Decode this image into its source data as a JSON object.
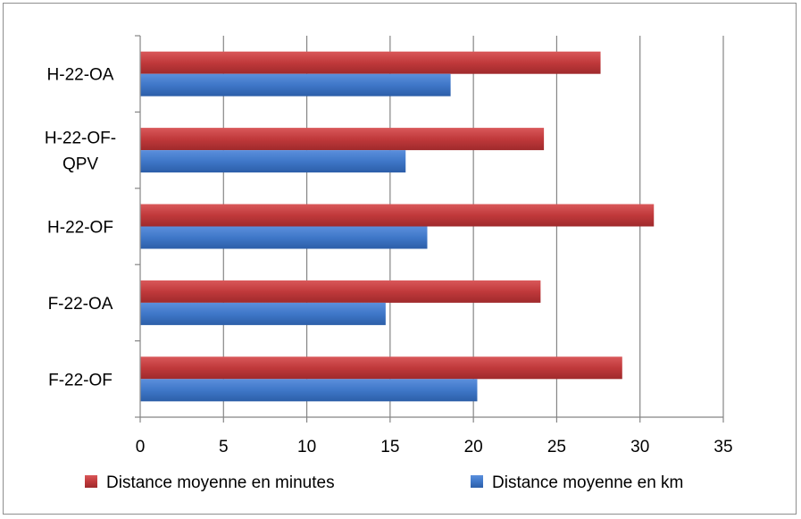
{
  "chart_data": {
    "type": "bar",
    "orientation": "horizontal",
    "categories": [
      "H-22-OA",
      "H-22-OF-QPV",
      "H-22-OF",
      "F-22-OA",
      "F-22-OF"
    ],
    "category_label_lines": [
      [
        "H-22-OA"
      ],
      [
        "H-22-OF-",
        "QPV"
      ],
      [
        "H-22-OF"
      ],
      [
        "F-22-OA"
      ],
      [
        "F-22-OF"
      ]
    ],
    "series": [
      {
        "name": "Distance moyenne en minutes",
        "color": "#c0393b",
        "values": [
          27.6,
          24.2,
          30.8,
          24.0,
          28.9
        ]
      },
      {
        "name": "Distance moyenne en km",
        "color": "#3f77c8",
        "values": [
          18.6,
          15.9,
          17.2,
          14.7,
          20.2
        ]
      }
    ],
    "xlim": [
      0,
      35
    ],
    "xticks": [
      0,
      5,
      10,
      15,
      20,
      25,
      30,
      35
    ],
    "grid": "vertical",
    "legend_position": "bottom",
    "title": "",
    "xlabel": "",
    "ylabel": ""
  }
}
